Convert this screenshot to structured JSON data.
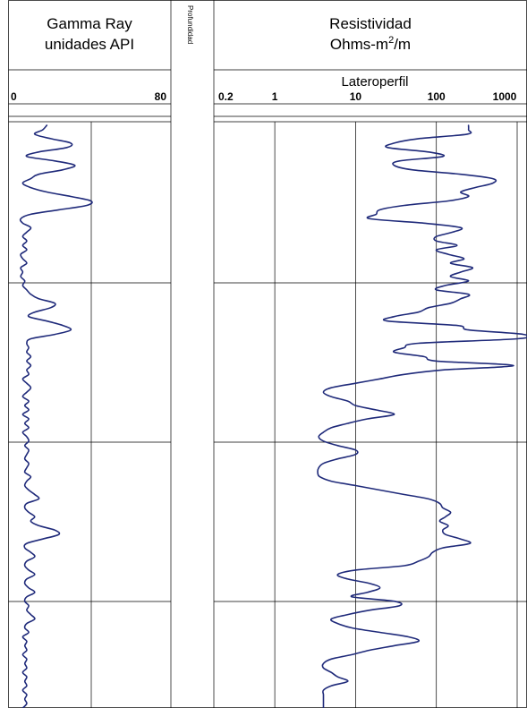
{
  "gamma_track": {
    "header_line1": "Gamma Ray",
    "header_line2": "unidades API",
    "scale_min": "0",
    "scale_max": "80"
  },
  "depth_track": {
    "label": "Profundidad"
  },
  "resistivity_track": {
    "header_line1": "Resistividad",
    "header_line2_prefix": "Ohms-m",
    "header_line2_sup": "2",
    "header_line2_suffix": "/m",
    "curve_label": "Lateroperfil",
    "ticks": [
      "0.2",
      "1",
      "10",
      "100",
      "1000"
    ]
  },
  "chart_data": {
    "type": "line",
    "series": [
      {
        "track": "gamma",
        "scale": "linear",
        "range": [
          0,
          80
        ],
        "y_depth": [
          0,
          5,
          10,
          15,
          20,
          25,
          30,
          35,
          40,
          45,
          50,
          55,
          60,
          65,
          70,
          75,
          80,
          85,
          90,
          95,
          100,
          105,
          110,
          115,
          120,
          125,
          130,
          135,
          140,
          145,
          150,
          155,
          160,
          165,
          170,
          175,
          180,
          185,
          190,
          195,
          200,
          205,
          210,
          215,
          220,
          225,
          230,
          235,
          240,
          245,
          250,
          255,
          260,
          265,
          270,
          275,
          280,
          285,
          290,
          295,
          300,
          305,
          310,
          315,
          320,
          325,
          330,
          335,
          340,
          345,
          350,
          355,
          360,
          365,
          370,
          375,
          380,
          385,
          390,
          395,
          400,
          405,
          410,
          415,
          420,
          425,
          430,
          435,
          440,
          445,
          450,
          455,
          460,
          465,
          470,
          475,
          480,
          485,
          490,
          495,
          500,
          505,
          510,
          515,
          520,
          525,
          530,
          535,
          540,
          545,
          550,
          555,
          560,
          565,
          570,
          575,
          580,
          585,
          590,
          595,
          600,
          605,
          610,
          615,
          620,
          625,
          630,
          635,
          640,
          645,
          650,
          655
        ],
        "values": [
          18,
          16,
          12,
          20,
          30,
          28,
          14,
          8,
          22,
          32,
          26,
          14,
          10,
          6,
          10,
          18,
          30,
          40,
          38,
          24,
          10,
          5,
          6,
          10,
          8,
          6,
          8,
          6,
          8,
          5,
          6,
          8,
          5,
          6,
          5,
          7,
          6,
          8,
          10,
          14,
          22,
          20,
          12,
          9,
          18,
          26,
          30,
          22,
          10,
          8,
          9,
          8,
          10,
          8,
          10,
          8,
          9,
          6,
          8,
          10,
          8,
          6,
          9,
          7,
          9,
          6,
          9,
          7,
          9,
          6,
          8,
          9,
          7,
          9,
          8,
          7,
          9,
          8,
          7,
          10,
          8,
          7,
          9,
          12,
          14,
          8,
          7,
          9,
          12,
          10,
          14,
          22,
          24,
          16,
          8,
          7,
          10,
          12,
          8,
          7,
          9,
          12,
          8,
          7,
          9,
          12,
          8,
          7,
          9,
          8,
          10,
          12,
          8,
          7,
          9,
          6,
          8,
          7,
          8,
          6,
          8,
          7,
          8,
          6,
          8,
          7,
          8,
          6,
          8,
          7,
          8,
          6
        ]
      },
      {
        "track": "resistivity",
        "scale": "log",
        "range": [
          0.2,
          1000
        ],
        "y_depth": [
          0,
          5,
          10,
          15,
          20,
          25,
          30,
          35,
          40,
          45,
          50,
          55,
          60,
          65,
          70,
          75,
          80,
          85,
          90,
          95,
          100,
          105,
          110,
          115,
          120,
          125,
          130,
          135,
          140,
          145,
          150,
          155,
          160,
          165,
          170,
          175,
          180,
          185,
          190,
          195,
          200,
          205,
          210,
          215,
          220,
          225,
          230,
          235,
          240,
          245,
          250,
          255,
          260,
          265,
          270,
          275,
          280,
          285,
          290,
          295,
          300,
          305,
          310,
          315,
          320,
          325,
          330,
          335,
          340,
          345,
          350,
          355,
          360,
          365,
          370,
          375,
          380,
          385,
          390,
          395,
          400,
          405,
          410,
          415,
          420,
          425,
          430,
          435,
          440,
          445,
          450,
          455,
          460,
          465,
          470,
          475,
          480,
          485,
          490,
          495,
          500,
          505,
          510,
          515,
          520,
          525,
          530,
          535,
          540,
          545,
          550,
          555,
          560,
          565,
          570,
          575,
          580,
          585,
          590,
          595,
          600,
          605,
          610,
          615,
          620,
          625,
          630,
          635,
          640,
          645,
          650,
          655
        ],
        "values": [
          250,
          250,
          240,
          60,
          30,
          25,
          80,
          120,
          35,
          30,
          50,
          200,
          500,
          500,
          300,
          200,
          250,
          140,
          40,
          20,
          18,
          15,
          70,
          200,
          160,
          100,
          100,
          180,
          100,
          140,
          220,
          150,
          280,
          200,
          150,
          250,
          130,
          100,
          250,
          200,
          150,
          80,
          60,
          30,
          25,
          180,
          250,
          1200,
          1000,
          60,
          40,
          30,
          70,
          100,
          900,
          120,
          40,
          20,
          10,
          5,
          4,
          5,
          8,
          10,
          18,
          30,
          14,
          8,
          5,
          4,
          3.5,
          4,
          6,
          10,
          10,
          6,
          4,
          3.5,
          3.4,
          3.6,
          5,
          10,
          20,
          40,
          80,
          110,
          120,
          150,
          130,
          110,
          140,
          120,
          130,
          200,
          260,
          120,
          90,
          80,
          60,
          40,
          10,
          6,
          8,
          15,
          20,
          14,
          9,
          30,
          35,
          15,
          8,
          5,
          6,
          9,
          20,
          45,
          60,
          30,
          15,
          9,
          5,
          4,
          4,
          5,
          6,
          8,
          5,
          4,
          4,
          4,
          4,
          4
        ]
      }
    ]
  }
}
